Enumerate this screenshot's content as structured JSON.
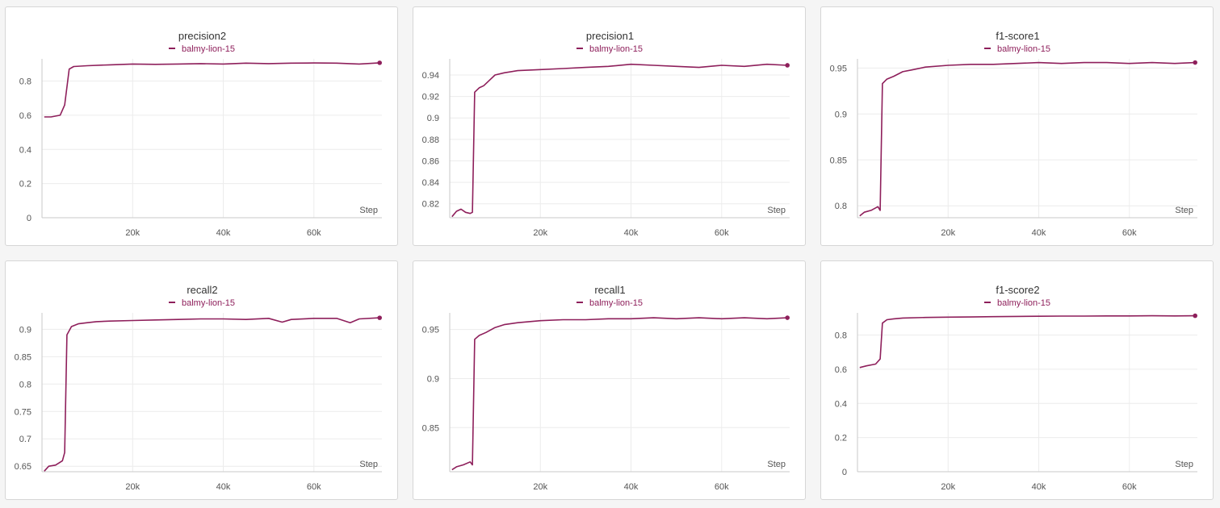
{
  "run": {
    "name": "balmy-lion-15",
    "color": "#8e1f5b"
  },
  "xlabel": "Step",
  "x_ticks": [
    20000,
    40000,
    60000
  ],
  "x_tick_labels": [
    "20k",
    "40k",
    "60k"
  ],
  "xlim": [
    0,
    75000
  ],
  "chart_data": [
    {
      "type": "line",
      "title": "precision2",
      "xlabel": "Step",
      "ylim": [
        0,
        0.93
      ],
      "y_ticks": [
        0,
        0.2,
        0.4,
        0.6,
        0.8
      ],
      "y_tick_labels": [
        "0",
        "0.2",
        "0.4",
        "0.6",
        "0.8"
      ],
      "legend": "top-center",
      "series": [
        {
          "name": "balmy-lion-15",
          "x": [
            500,
            2000,
            4000,
            5000,
            6000,
            7000,
            10000,
            15000,
            20000,
            25000,
            30000,
            35000,
            40000,
            45000,
            50000,
            55000,
            60000,
            65000,
            70000,
            74500
          ],
          "y": [
            0.59,
            0.59,
            0.6,
            0.66,
            0.87,
            0.885,
            0.89,
            0.895,
            0.9,
            0.898,
            0.9,
            0.902,
            0.9,
            0.905,
            0.902,
            0.905,
            0.906,
            0.905,
            0.9,
            0.907
          ]
        }
      ]
    },
    {
      "type": "line",
      "title": "precision1",
      "xlabel": "Step",
      "ylim": [
        0.807,
        0.955
      ],
      "y_ticks": [
        0.82,
        0.84,
        0.86,
        0.88,
        0.9,
        0.92,
        0.94
      ],
      "y_tick_labels": [
        "0.82",
        "0.84",
        "0.86",
        "0.88",
        "0.9",
        "0.92",
        "0.94"
      ],
      "legend": "top-center",
      "series": [
        {
          "name": "balmy-lion-15",
          "x": [
            500,
            1500,
            2500,
            3500,
            4500,
            5000,
            5500,
            6500,
            7500,
            9000,
            10000,
            12000,
            15000,
            20000,
            25000,
            30000,
            35000,
            40000,
            45000,
            50000,
            55000,
            60000,
            65000,
            70000,
            74500
          ],
          "y": [
            0.808,
            0.813,
            0.815,
            0.812,
            0.811,
            0.812,
            0.924,
            0.928,
            0.93,
            0.936,
            0.94,
            0.942,
            0.944,
            0.945,
            0.946,
            0.947,
            0.948,
            0.95,
            0.949,
            0.948,
            0.947,
            0.949,
            0.948,
            0.95,
            0.949
          ]
        }
      ]
    },
    {
      "type": "line",
      "title": "f1-score1",
      "xlabel": "Step",
      "ylim": [
        0.787,
        0.96
      ],
      "y_ticks": [
        0.8,
        0.85,
        0.9,
        0.95
      ],
      "y_tick_labels": [
        "0.8",
        "0.85",
        "0.9",
        "0.95"
      ],
      "legend": "top-center",
      "series": [
        {
          "name": "balmy-lion-15",
          "x": [
            500,
            1500,
            3000,
            4500,
            5000,
            5500,
            6500,
            8000,
            10000,
            12000,
            15000,
            20000,
            25000,
            30000,
            35000,
            40000,
            45000,
            50000,
            55000,
            60000,
            65000,
            70000,
            74500
          ],
          "y": [
            0.789,
            0.793,
            0.795,
            0.799,
            0.795,
            0.933,
            0.938,
            0.941,
            0.946,
            0.948,
            0.951,
            0.953,
            0.954,
            0.954,
            0.955,
            0.956,
            0.955,
            0.956,
            0.956,
            0.955,
            0.956,
            0.955,
            0.956
          ]
        }
      ]
    },
    {
      "type": "line",
      "title": "recall2",
      "xlabel": "Step",
      "ylim": [
        0.64,
        0.93
      ],
      "y_ticks": [
        0.65,
        0.7,
        0.75,
        0.8,
        0.85,
        0.9
      ],
      "y_tick_labels": [
        "0.65",
        "0.7",
        "0.75",
        "0.8",
        "0.85",
        "0.9"
      ],
      "legend": "top-center",
      "series": [
        {
          "name": "balmy-lion-15",
          "x": [
            500,
            1500,
            3000,
            4500,
            5000,
            5500,
            6500,
            8000,
            10000,
            12000,
            15000,
            20000,
            25000,
            30000,
            35000,
            40000,
            45000,
            50000,
            53000,
            55000,
            60000,
            65000,
            68000,
            70000,
            74500
          ],
          "y": [
            0.641,
            0.65,
            0.652,
            0.66,
            0.675,
            0.89,
            0.905,
            0.91,
            0.912,
            0.914,
            0.915,
            0.916,
            0.917,
            0.918,
            0.919,
            0.919,
            0.918,
            0.92,
            0.913,
            0.918,
            0.92,
            0.92,
            0.912,
            0.919,
            0.921
          ]
        }
      ]
    },
    {
      "type": "line",
      "title": "recall1",
      "xlabel": "Step",
      "ylim": [
        0.805,
        0.967
      ],
      "y_ticks": [
        0.85,
        0.9,
        0.95
      ],
      "y_tick_labels": [
        "0.85",
        "0.9",
        "0.95"
      ],
      "legend": "top-center",
      "series": [
        {
          "name": "balmy-lion-15",
          "x": [
            500,
            1500,
            3000,
            4500,
            5000,
            5500,
            6500,
            8000,
            10000,
            12000,
            15000,
            20000,
            25000,
            30000,
            35000,
            40000,
            45000,
            50000,
            55000,
            60000,
            65000,
            70000,
            74500
          ],
          "y": [
            0.807,
            0.81,
            0.812,
            0.815,
            0.812,
            0.94,
            0.944,
            0.947,
            0.952,
            0.955,
            0.957,
            0.959,
            0.96,
            0.96,
            0.961,
            0.961,
            0.962,
            0.961,
            0.962,
            0.961,
            0.962,
            0.961,
            0.962
          ]
        }
      ]
    },
    {
      "type": "line",
      "title": "f1-score2",
      "xlabel": "Step",
      "ylim": [
        0,
        0.93
      ],
      "y_ticks": [
        0,
        0.2,
        0.4,
        0.6,
        0.8
      ],
      "y_tick_labels": [
        "0",
        "0.2",
        "0.4",
        "0.6",
        "0.8"
      ],
      "legend": "top-center",
      "series": [
        {
          "name": "balmy-lion-15",
          "x": [
            500,
            2000,
            4000,
            5000,
            5500,
            6500,
            8000,
            10000,
            15000,
            20000,
            25000,
            30000,
            35000,
            40000,
            45000,
            50000,
            55000,
            60000,
            65000,
            70000,
            74500
          ],
          "y": [
            0.61,
            0.62,
            0.63,
            0.66,
            0.87,
            0.89,
            0.895,
            0.9,
            0.903,
            0.905,
            0.906,
            0.908,
            0.909,
            0.91,
            0.911,
            0.911,
            0.912,
            0.912,
            0.913,
            0.912,
            0.913
          ]
        }
      ]
    }
  ]
}
